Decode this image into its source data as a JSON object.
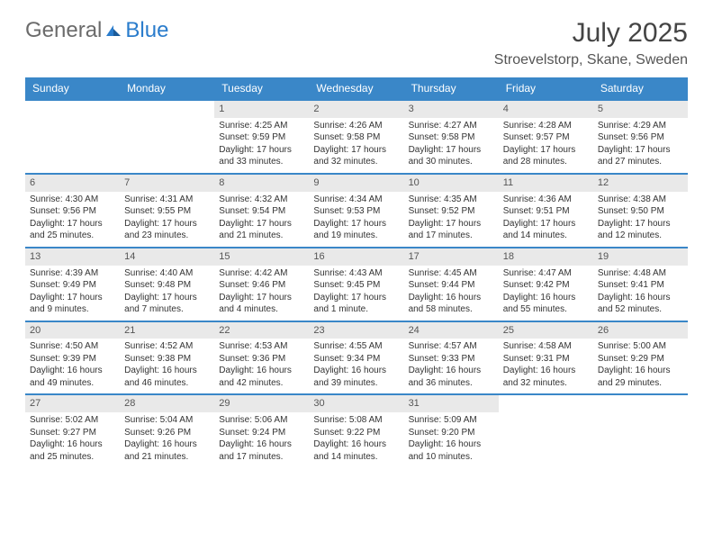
{
  "brand": {
    "part1": "General",
    "part2": "Blue"
  },
  "header": {
    "month": "July 2025",
    "location": "Stroevelstorp, Skane, Sweden"
  },
  "colors": {
    "accent": "#3a87c8",
    "num_bg": "#e9e9e9",
    "text": "#333",
    "header_text": "#fff"
  },
  "dayNames": [
    "Sunday",
    "Monday",
    "Tuesday",
    "Wednesday",
    "Thursday",
    "Friday",
    "Saturday"
  ],
  "weeks": [
    [
      {
        "n": "",
        "sr": "",
        "ss": "",
        "dl": ""
      },
      {
        "n": "",
        "sr": "",
        "ss": "",
        "dl": ""
      },
      {
        "n": "1",
        "sr": "Sunrise: 4:25 AM",
        "ss": "Sunset: 9:59 PM",
        "dl": "Daylight: 17 hours and 33 minutes."
      },
      {
        "n": "2",
        "sr": "Sunrise: 4:26 AM",
        "ss": "Sunset: 9:58 PM",
        "dl": "Daylight: 17 hours and 32 minutes."
      },
      {
        "n": "3",
        "sr": "Sunrise: 4:27 AM",
        "ss": "Sunset: 9:58 PM",
        "dl": "Daylight: 17 hours and 30 minutes."
      },
      {
        "n": "4",
        "sr": "Sunrise: 4:28 AM",
        "ss": "Sunset: 9:57 PM",
        "dl": "Daylight: 17 hours and 28 minutes."
      },
      {
        "n": "5",
        "sr": "Sunrise: 4:29 AM",
        "ss": "Sunset: 9:56 PM",
        "dl": "Daylight: 17 hours and 27 minutes."
      }
    ],
    [
      {
        "n": "6",
        "sr": "Sunrise: 4:30 AM",
        "ss": "Sunset: 9:56 PM",
        "dl": "Daylight: 17 hours and 25 minutes."
      },
      {
        "n": "7",
        "sr": "Sunrise: 4:31 AM",
        "ss": "Sunset: 9:55 PM",
        "dl": "Daylight: 17 hours and 23 minutes."
      },
      {
        "n": "8",
        "sr": "Sunrise: 4:32 AM",
        "ss": "Sunset: 9:54 PM",
        "dl": "Daylight: 17 hours and 21 minutes."
      },
      {
        "n": "9",
        "sr": "Sunrise: 4:34 AM",
        "ss": "Sunset: 9:53 PM",
        "dl": "Daylight: 17 hours and 19 minutes."
      },
      {
        "n": "10",
        "sr": "Sunrise: 4:35 AM",
        "ss": "Sunset: 9:52 PM",
        "dl": "Daylight: 17 hours and 17 minutes."
      },
      {
        "n": "11",
        "sr": "Sunrise: 4:36 AM",
        "ss": "Sunset: 9:51 PM",
        "dl": "Daylight: 17 hours and 14 minutes."
      },
      {
        "n": "12",
        "sr": "Sunrise: 4:38 AM",
        "ss": "Sunset: 9:50 PM",
        "dl": "Daylight: 17 hours and 12 minutes."
      }
    ],
    [
      {
        "n": "13",
        "sr": "Sunrise: 4:39 AM",
        "ss": "Sunset: 9:49 PM",
        "dl": "Daylight: 17 hours and 9 minutes."
      },
      {
        "n": "14",
        "sr": "Sunrise: 4:40 AM",
        "ss": "Sunset: 9:48 PM",
        "dl": "Daylight: 17 hours and 7 minutes."
      },
      {
        "n": "15",
        "sr": "Sunrise: 4:42 AM",
        "ss": "Sunset: 9:46 PM",
        "dl": "Daylight: 17 hours and 4 minutes."
      },
      {
        "n": "16",
        "sr": "Sunrise: 4:43 AM",
        "ss": "Sunset: 9:45 PM",
        "dl": "Daylight: 17 hours and 1 minute."
      },
      {
        "n": "17",
        "sr": "Sunrise: 4:45 AM",
        "ss": "Sunset: 9:44 PM",
        "dl": "Daylight: 16 hours and 58 minutes."
      },
      {
        "n": "18",
        "sr": "Sunrise: 4:47 AM",
        "ss": "Sunset: 9:42 PM",
        "dl": "Daylight: 16 hours and 55 minutes."
      },
      {
        "n": "19",
        "sr": "Sunrise: 4:48 AM",
        "ss": "Sunset: 9:41 PM",
        "dl": "Daylight: 16 hours and 52 minutes."
      }
    ],
    [
      {
        "n": "20",
        "sr": "Sunrise: 4:50 AM",
        "ss": "Sunset: 9:39 PM",
        "dl": "Daylight: 16 hours and 49 minutes."
      },
      {
        "n": "21",
        "sr": "Sunrise: 4:52 AM",
        "ss": "Sunset: 9:38 PM",
        "dl": "Daylight: 16 hours and 46 minutes."
      },
      {
        "n": "22",
        "sr": "Sunrise: 4:53 AM",
        "ss": "Sunset: 9:36 PM",
        "dl": "Daylight: 16 hours and 42 minutes."
      },
      {
        "n": "23",
        "sr": "Sunrise: 4:55 AM",
        "ss": "Sunset: 9:34 PM",
        "dl": "Daylight: 16 hours and 39 minutes."
      },
      {
        "n": "24",
        "sr": "Sunrise: 4:57 AM",
        "ss": "Sunset: 9:33 PM",
        "dl": "Daylight: 16 hours and 36 minutes."
      },
      {
        "n": "25",
        "sr": "Sunrise: 4:58 AM",
        "ss": "Sunset: 9:31 PM",
        "dl": "Daylight: 16 hours and 32 minutes."
      },
      {
        "n": "26",
        "sr": "Sunrise: 5:00 AM",
        "ss": "Sunset: 9:29 PM",
        "dl": "Daylight: 16 hours and 29 minutes."
      }
    ],
    [
      {
        "n": "27",
        "sr": "Sunrise: 5:02 AM",
        "ss": "Sunset: 9:27 PM",
        "dl": "Daylight: 16 hours and 25 minutes."
      },
      {
        "n": "28",
        "sr": "Sunrise: 5:04 AM",
        "ss": "Sunset: 9:26 PM",
        "dl": "Daylight: 16 hours and 21 minutes."
      },
      {
        "n": "29",
        "sr": "Sunrise: 5:06 AM",
        "ss": "Sunset: 9:24 PM",
        "dl": "Daylight: 16 hours and 17 minutes."
      },
      {
        "n": "30",
        "sr": "Sunrise: 5:08 AM",
        "ss": "Sunset: 9:22 PM",
        "dl": "Daylight: 16 hours and 14 minutes."
      },
      {
        "n": "31",
        "sr": "Sunrise: 5:09 AM",
        "ss": "Sunset: 9:20 PM",
        "dl": "Daylight: 16 hours and 10 minutes."
      },
      {
        "n": "",
        "sr": "",
        "ss": "",
        "dl": ""
      },
      {
        "n": "",
        "sr": "",
        "ss": "",
        "dl": ""
      }
    ]
  ]
}
